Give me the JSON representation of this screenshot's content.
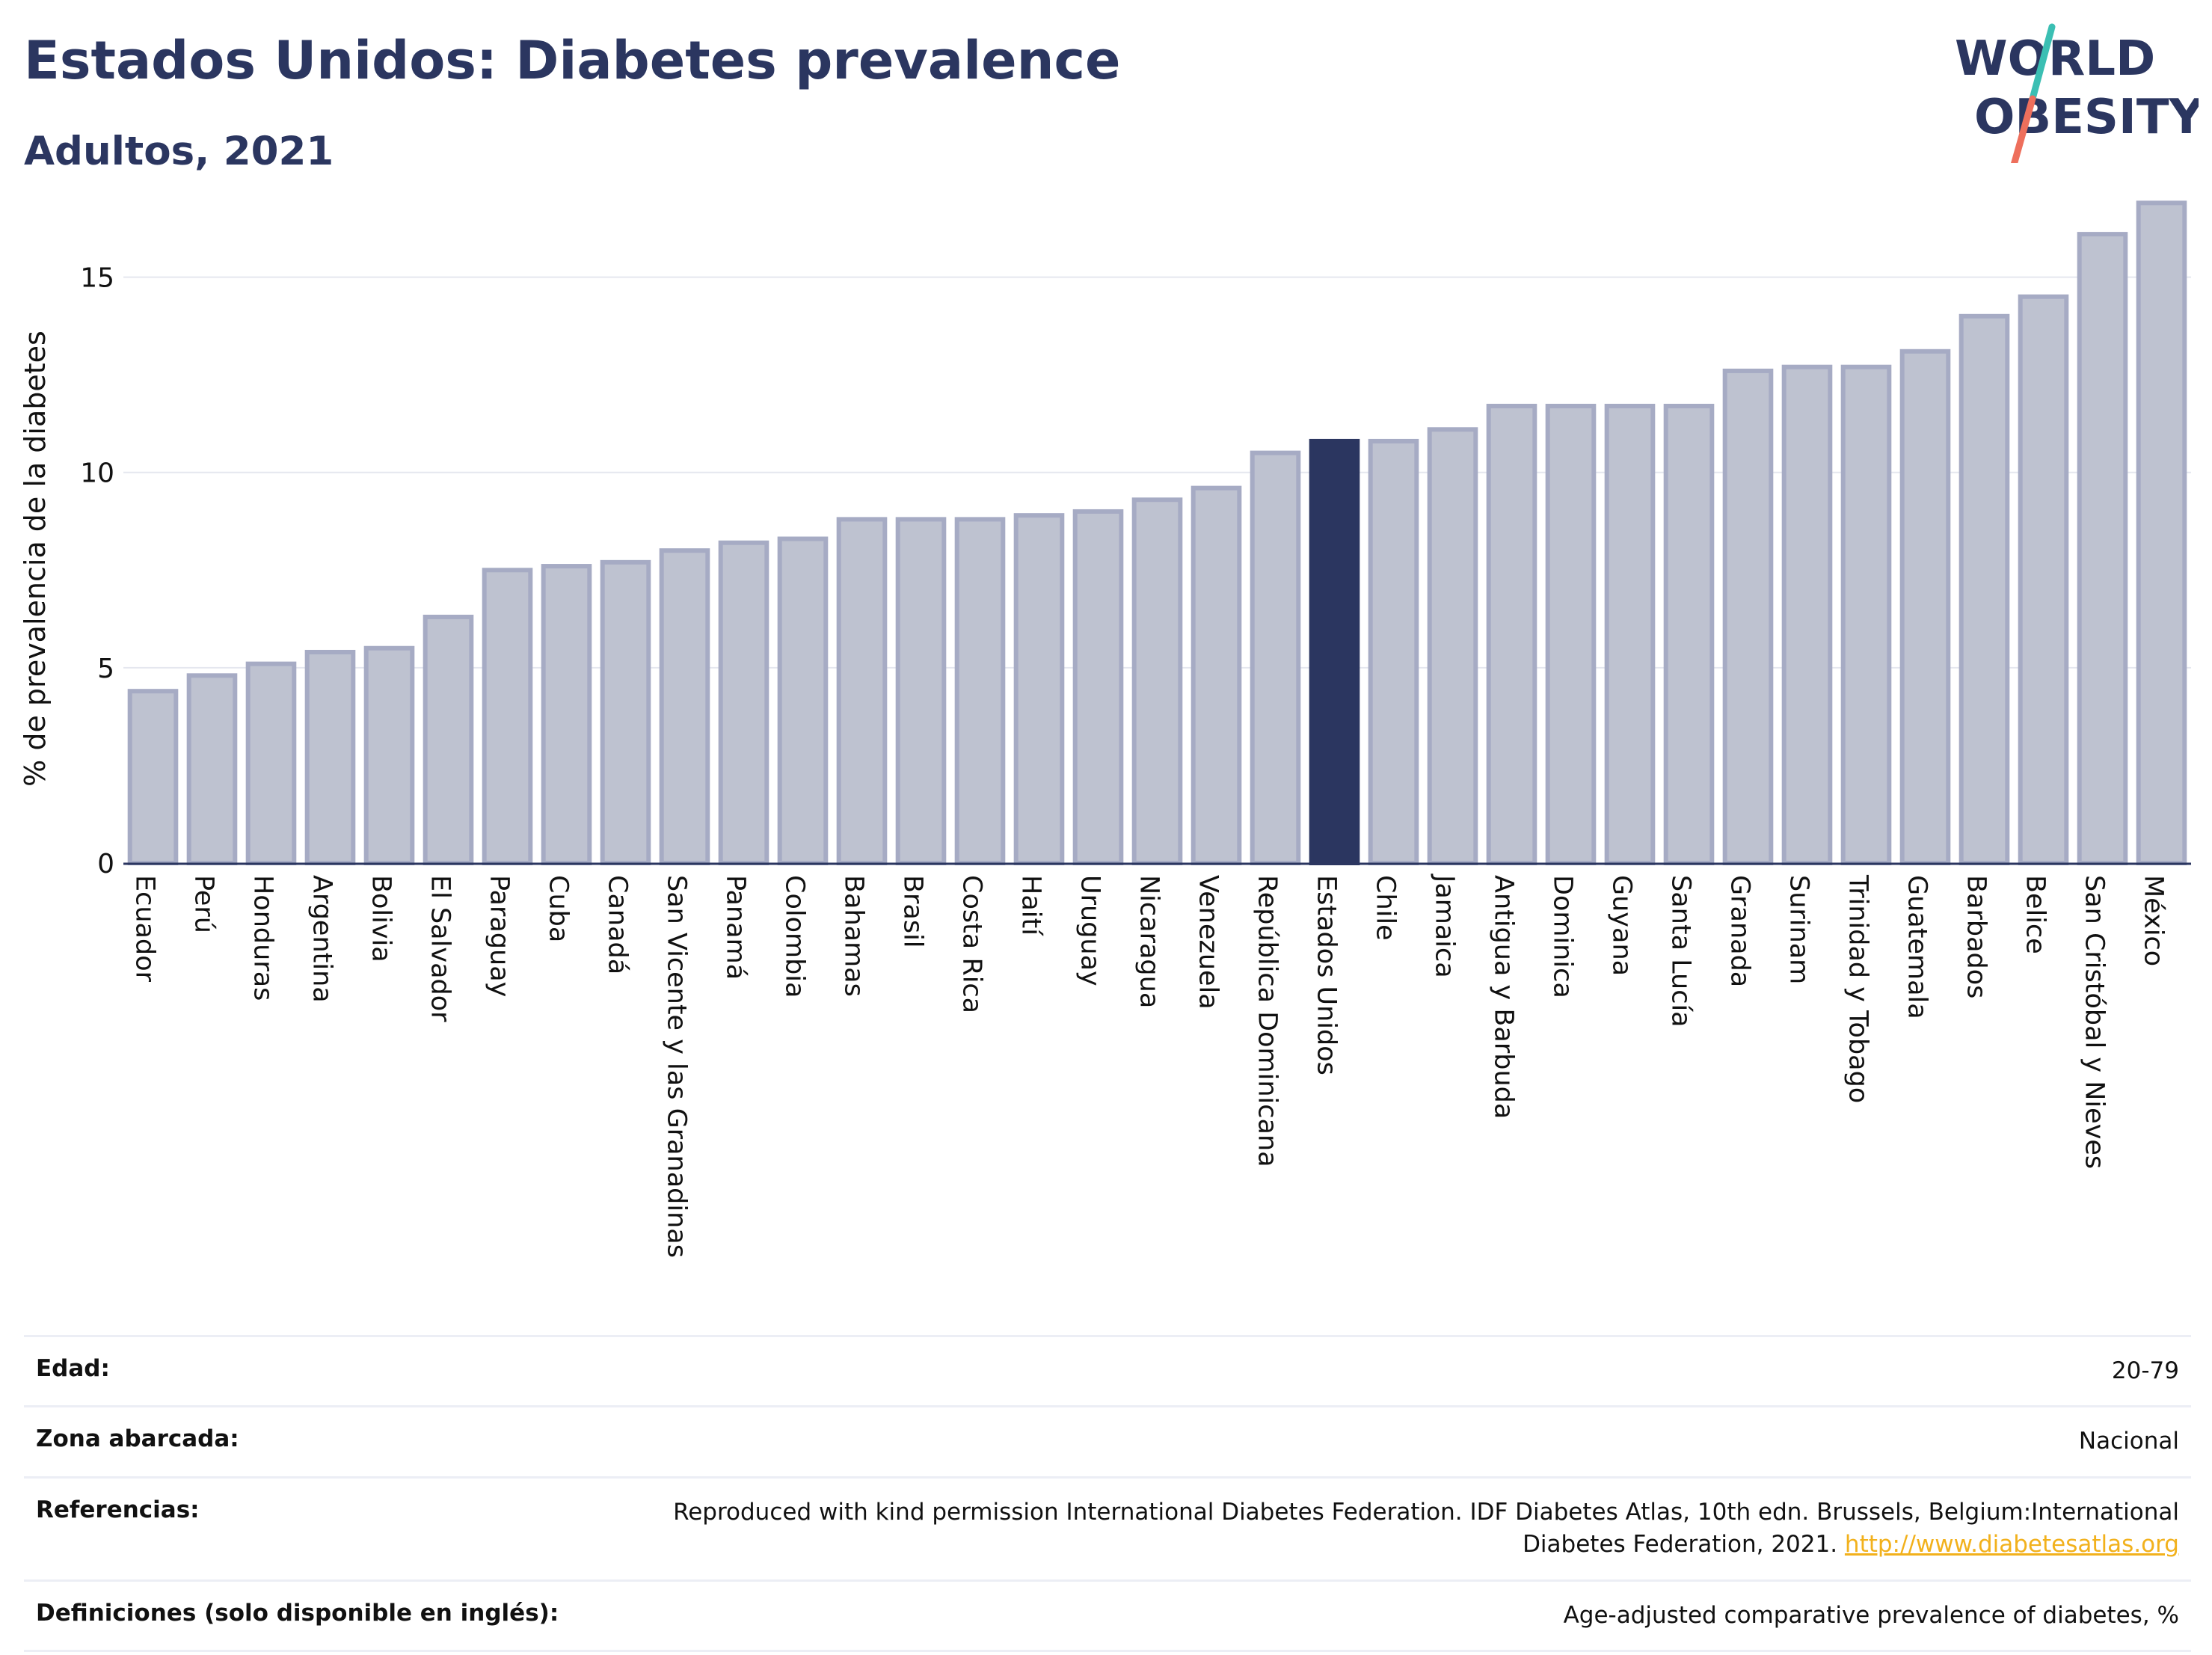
{
  "header": {
    "title": "Estados Unidos: Diabetes prevalence",
    "subtitle": "Adultos, 2021"
  },
  "logo": {
    "line1": "WORLD",
    "line2": "OBESITY",
    "colors": {
      "text": "#2b3660",
      "slash_top": "#3bbfb3",
      "slash_bottom": "#ee6f5c"
    }
  },
  "chart_data": {
    "type": "bar",
    "ylabel": "% de prevalencia de la diabetes",
    "ylim": [
      0,
      17.5
    ],
    "yticks": [
      0,
      5,
      10,
      15
    ],
    "grid": true,
    "highlight": "Estados Unidos",
    "colors": {
      "bar_fill": "#bec2d0",
      "bar_stroke": "#a6abc4",
      "highlight": "#2b3660",
      "grid": "#e5e7ef",
      "axis": "#2b3660",
      "text": "#111111"
    },
    "categories": [
      "Ecuador",
      "Perú",
      "Honduras",
      "Argentina",
      "Bolivia",
      "El Salvador",
      "Paraguay",
      "Cuba",
      "Canadá",
      "San Vicente y las Granadinas",
      "Panamá",
      "Colombia",
      "Bahamas",
      "Brasil",
      "Costa Rica",
      "Haití",
      "Uruguay",
      "Nicaragua",
      "Venezuela",
      "República Dominicana",
      "Estados Unidos",
      "Chile",
      "Jamaica",
      "Antigua y Barbuda",
      "Dominica",
      "Guyana",
      "Santa Lucía",
      "Granada",
      "Surinam",
      "Trinidad y Tobago",
      "Guatemala",
      "Barbados",
      "Belice",
      "San Cristóbal y Nieves",
      "México"
    ],
    "values": [
      4.4,
      4.8,
      5.1,
      5.4,
      5.5,
      6.3,
      7.5,
      7.6,
      7.7,
      8.0,
      8.2,
      8.3,
      8.8,
      8.8,
      8.8,
      8.9,
      9.0,
      9.3,
      9.6,
      10.5,
      10.8,
      10.8,
      11.1,
      11.7,
      11.7,
      11.7,
      11.7,
      12.6,
      12.7,
      12.7,
      13.1,
      14.0,
      14.5,
      16.1,
      16.9
    ]
  },
  "info": {
    "rows": [
      {
        "label": "Edad:",
        "value": "20-79"
      },
      {
        "label": "Zona abarcada:",
        "value": "Nacional"
      },
      {
        "label": "Referencias:",
        "value": "Reproduced with kind permission International Diabetes Federation.  IDF Diabetes Atlas, 10th edn. Brussels, Belgium:International Diabetes Federation, 2021.",
        "link": "http://www.diabetesatlas.org"
      },
      {
        "label": "Definiciones (solo disponible en inglés):",
        "value": "Age-adjusted comparative prevalence of diabetes, %"
      }
    ]
  }
}
